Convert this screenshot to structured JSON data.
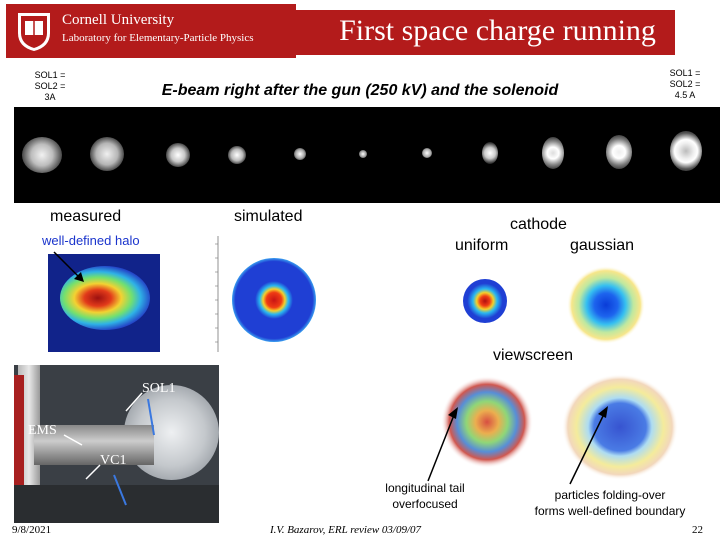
{
  "header": {
    "logo_university": "Cornell University",
    "logo_lab": "Laboratory for Elementary-Particle Physics",
    "title": "First space charge running"
  },
  "sol_left": {
    "line1": "SOL1 =",
    "line2": "SOL2 =",
    "line3": "3A"
  },
  "sol_right": {
    "line1": "SOL1 =",
    "line2": "SOL2 =",
    "line3": "4.5 A"
  },
  "ebeam_title": "E-beam right after the gun (250 kV) and the solenoid",
  "labels": {
    "measured": "measured",
    "simulated": "simulated",
    "halo": "well-defined halo",
    "cathode": "cathode",
    "uniform": "uniform",
    "gaussian": "gaussian",
    "viewscreen": "viewscreen",
    "tail_line1": "longitudinal tail",
    "tail_line2": "overfocused",
    "fold_line1": "particles folding-over",
    "fold_line2": "forms well-defined boundary"
  },
  "photo": {
    "sol1": "SOL1",
    "ems": "EMS",
    "vc1": "VC1"
  },
  "footer": {
    "date": "9/8/2021",
    "author": "I.V. Bazarov, ERL review 03/09/07",
    "page": "22"
  },
  "colors": {
    "cornell_red": "#b31b1b"
  }
}
